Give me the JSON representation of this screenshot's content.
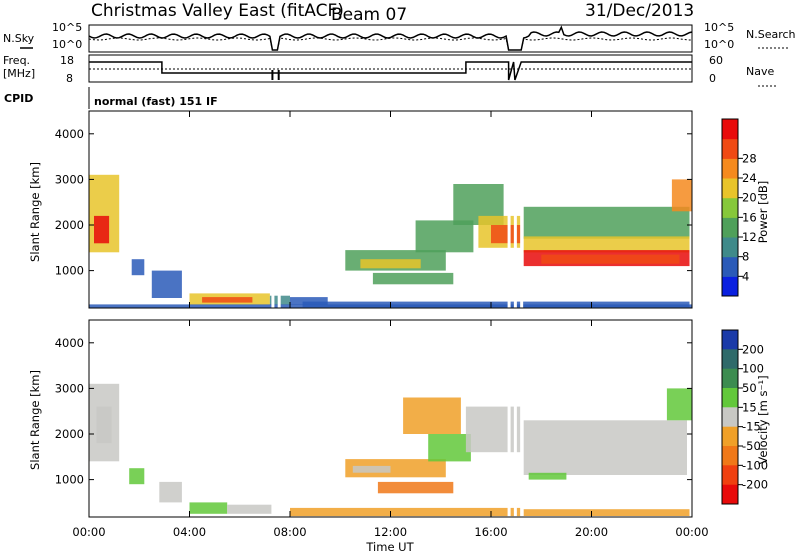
{
  "header": {
    "station": "Christmas Valley East (fitACF)",
    "beam": "Beam 07",
    "date": "31/Dec/2013"
  },
  "labels": {
    "nsky": "N.Sky",
    "nsearch": "N.Search",
    "freq": "Freq.",
    "mhz": "[MHz]",
    "nave": "Nave",
    "cpid": "CPID",
    "cpid_value": "normal (fast) 151 IF",
    "x_axis": "Time UT",
    "y_axis": "Slant Range [km]",
    "power_label": "Power [dB]",
    "velocity_label": "Velocity [m s⁻¹]",
    "noise_left_ticks": [
      "10^5",
      "10^0"
    ],
    "noise_right_ticks": [
      "10^5",
      "10^0"
    ],
    "freq_left_ticks": [
      "18",
      "8"
    ],
    "nave_right_ticks": [
      "60",
      "0"
    ]
  },
  "chart_data": [
    {
      "type": "heatmap",
      "name": "power",
      "xlabel": "Time UT",
      "ylabel": "Slant Range [km]",
      "x_ticks": [
        "00:00",
        "04:00",
        "08:00",
        "12:00",
        "16:00",
        "20:00",
        "00:00"
      ],
      "xlim_hours": [
        0,
        24
      ],
      "ylim": [
        180,
        4500
      ],
      "y_ticks": [
        1000,
        2000,
        3000,
        4000
      ],
      "colorbar": {
        "label": "Power [dB]",
        "ticks": [
          "4",
          "8",
          "12",
          "16",
          "20",
          "24",
          "28"
        ],
        "colors": [
          "#0a20e0",
          "#2a5ab8",
          "#3f8a8a",
          "#4fa05a",
          "#86c83a",
          "#e8c42a",
          "#f58a1e",
          "#f04a14",
          "#e80a0a"
        ]
      },
      "regions": [
        {
          "t0": 0.0,
          "t1": 1.2,
          "r0": 1400,
          "r1": 3100,
          "level": 5
        },
        {
          "t0": 0.2,
          "t1": 0.8,
          "r0": 1600,
          "r1": 2200,
          "level": 8
        },
        {
          "t0": 1.7,
          "t1": 2.2,
          "r0": 900,
          "r1": 1250,
          "level": 1
        },
        {
          "t0": 2.5,
          "t1": 3.7,
          "r0": 400,
          "r1": 1000,
          "level": 1
        },
        {
          "t0": 4.0,
          "t1": 7.2,
          "r0": 250,
          "r1": 500,
          "level": 5
        },
        {
          "t0": 4.5,
          "t1": 6.5,
          "r0": 300,
          "r1": 420,
          "level": 7
        },
        {
          "t0": 7.2,
          "t1": 8.0,
          "r0": 250,
          "r1": 450,
          "level": 2
        },
        {
          "t0": 8.0,
          "t1": 9.5,
          "r0": 250,
          "r1": 420,
          "level": 1
        },
        {
          "t0": 10.2,
          "t1": 14.2,
          "r0": 1000,
          "r1": 1450,
          "level": 3
        },
        {
          "t0": 10.8,
          "t1": 13.2,
          "r0": 1050,
          "r1": 1250,
          "level": 5
        },
        {
          "t0": 11.3,
          "t1": 14.5,
          "r0": 700,
          "r1": 950,
          "level": 3
        },
        {
          "t0": 13.0,
          "t1": 15.3,
          "r0": 1400,
          "r1": 2100,
          "level": 3
        },
        {
          "t0": 14.5,
          "t1": 16.5,
          "r0": 2000,
          "r1": 2900,
          "level": 3
        },
        {
          "t0": 15.5,
          "t1": 17.2,
          "r0": 1500,
          "r1": 2200,
          "level": 5
        },
        {
          "t0": 16.0,
          "t1": 17.2,
          "r0": 1600,
          "r1": 2000,
          "level": 7
        },
        {
          "t0": 17.3,
          "t1": 23.9,
          "r0": 1700,
          "r1": 2400,
          "level": 3
        },
        {
          "t0": 17.3,
          "t1": 23.9,
          "r0": 1400,
          "r1": 1750,
          "level": 5
        },
        {
          "t0": 17.3,
          "t1": 23.9,
          "r0": 1100,
          "r1": 1450,
          "level": 8
        },
        {
          "t0": 18.0,
          "t1": 23.5,
          "r0": 1150,
          "r1": 1350,
          "level": 7
        },
        {
          "t0": 23.2,
          "t1": 24.0,
          "r0": 2300,
          "r1": 3000,
          "level": 6
        },
        {
          "t0": 8.5,
          "t1": 23.9,
          "r0": 200,
          "r1": 320,
          "level": 1
        },
        {
          "t0": 0.0,
          "t1": 24.0,
          "r0": 180,
          "r1": 260,
          "level": 1
        }
      ]
    },
    {
      "type": "heatmap",
      "name": "velocity",
      "xlabel": "Time UT",
      "ylabel": "Slant Range [km]",
      "x_ticks": [
        "00:00",
        "04:00",
        "08:00",
        "12:00",
        "16:00",
        "20:00",
        "00:00"
      ],
      "xlim_hours": [
        0,
        24
      ],
      "ylim": [
        180,
        4500
      ],
      "y_ticks": [
        1000,
        2000,
        3000,
        4000
      ],
      "colorbar": {
        "label": "Velocity [m s⁻¹]",
        "ticks": [
          "200",
          "100",
          "50",
          "15",
          "-15",
          "-50",
          "-100",
          "-200"
        ],
        "colors": [
          "#1a3aa8",
          "#2f6a6a",
          "#3c8c50",
          "#62c83a",
          "#c8c8c4",
          "#f0a028",
          "#f07818",
          "#f04010",
          "#e80a0a"
        ]
      },
      "regions": [
        {
          "t0": 0.0,
          "t1": 1.2,
          "r0": 1400,
          "r1": 3100,
          "level": 4
        },
        {
          "t0": 0.3,
          "t1": 0.9,
          "r0": 1800,
          "r1": 2600,
          "level": 4
        },
        {
          "t0": 1.6,
          "t1": 2.2,
          "r0": 900,
          "r1": 1250,
          "level": 3
        },
        {
          "t0": 2.8,
          "t1": 3.7,
          "r0": 500,
          "r1": 950,
          "level": 4
        },
        {
          "t0": 4.0,
          "t1": 5.5,
          "r0": 250,
          "r1": 500,
          "level": 3
        },
        {
          "t0": 5.5,
          "t1": 7.3,
          "r0": 250,
          "r1": 450,
          "level": 4
        },
        {
          "t0": 8.0,
          "t1": 17.2,
          "r0": 200,
          "r1": 380,
          "level": 5
        },
        {
          "t0": 10.2,
          "t1": 14.2,
          "r0": 1050,
          "r1": 1450,
          "level": 5
        },
        {
          "t0": 10.5,
          "t1": 12.0,
          "r0": 1150,
          "r1": 1300,
          "level": 4
        },
        {
          "t0": 11.5,
          "t1": 14.5,
          "r0": 700,
          "r1": 950,
          "level": 6
        },
        {
          "t0": 12.5,
          "t1": 14.8,
          "r0": 2000,
          "r1": 2800,
          "level": 5
        },
        {
          "t0": 13.5,
          "t1": 15.2,
          "r0": 1400,
          "r1": 2000,
          "level": 3
        },
        {
          "t0": 15.0,
          "t1": 17.2,
          "r0": 1600,
          "r1": 2600,
          "level": 4
        },
        {
          "t0": 17.3,
          "t1": 23.8,
          "r0": 1100,
          "r1": 2300,
          "level": 4
        },
        {
          "t0": 17.5,
          "t1": 19.0,
          "r0": 1000,
          "r1": 1150,
          "level": 3
        },
        {
          "t0": 17.3,
          "t1": 23.9,
          "r0": 200,
          "r1": 350,
          "level": 5
        },
        {
          "t0": 23.0,
          "t1": 24.0,
          "r0": 2300,
          "r1": 3000,
          "level": 3
        }
      ]
    }
  ]
}
